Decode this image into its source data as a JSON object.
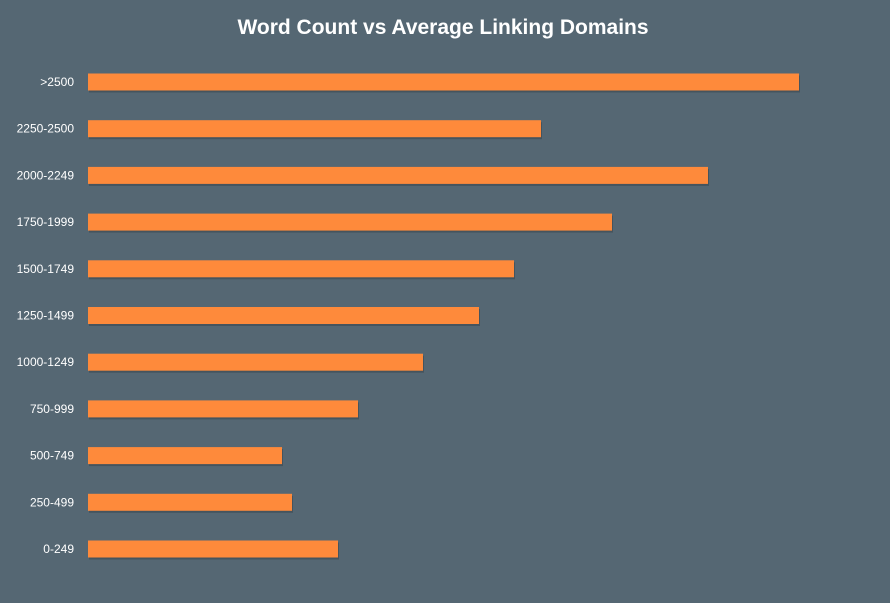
{
  "chart_data": {
    "type": "bar",
    "orientation": "horizontal",
    "title": "Word Count vs Average Linking Domains",
    "xlabel": "",
    "ylabel": "",
    "categories": [
      ">2500",
      "2250-2500",
      "2000-2249",
      "1750-1999",
      "1500-1749",
      "1250-1499",
      "1000-1249",
      "750-999",
      "500-749",
      "250-499",
      "0-249"
    ],
    "values": [
      711,
      453,
      620,
      524,
      426,
      391,
      335,
      270,
      194,
      204,
      250
    ],
    "xlim": [
      0,
      800
    ],
    "grid": false,
    "legend": "none",
    "colors": {
      "background": "#556773",
      "bar": "#fe8a3b",
      "text": "#ffffff"
    }
  }
}
